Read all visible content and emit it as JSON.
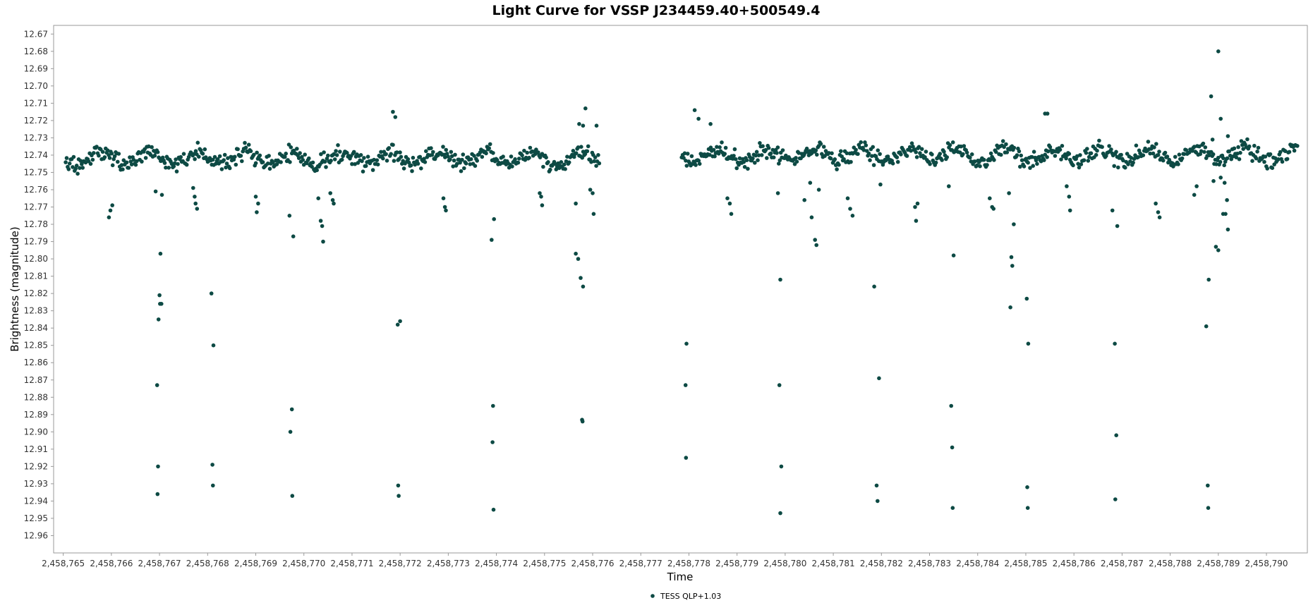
{
  "chart_data": {
    "type": "scatter",
    "title": "Light Curve for VSSP J234459.40+500549.4",
    "xlabel": "Time",
    "ylabel": "Brightness (magnitude)",
    "xlim": [
      2458764.8,
      2458790.85
    ],
    "ylim": [
      12.665,
      12.97
    ],
    "y_inverted": true,
    "grid": false,
    "legend_position": "bottom-center",
    "x_ticks": [
      2458765,
      2458766,
      2458767,
      2458768,
      2458769,
      2458770,
      2458771,
      2458772,
      2458773,
      2458774,
      2458775,
      2458776,
      2458777,
      2458778,
      2458779,
      2458780,
      2458781,
      2458782,
      2458783,
      2458784,
      2458785,
      2458786,
      2458787,
      2458788,
      2458789,
      2458790
    ],
    "x_tick_labels": [
      "2,458,765",
      "2,458,766",
      "2,458,767",
      "2,458,768",
      "2,458,769",
      "2,458,770",
      "2,458,771",
      "2,458,772",
      "2,458,773",
      "2,458,774",
      "2,458,775",
      "2,458,776",
      "2,458,777",
      "2,458,778",
      "2,458,779",
      "2,458,780",
      "2,458,781",
      "2,458,782",
      "2,458,783",
      "2,458,784",
      "2,458,785",
      "2,458,786",
      "2,458,787",
      "2,458,788",
      "2,458,789",
      "2,458,790"
    ],
    "y_ticks": [
      12.67,
      12.68,
      12.69,
      12.7,
      12.71,
      12.72,
      12.73,
      12.74,
      12.75,
      12.76,
      12.77,
      12.78,
      12.79,
      12.8,
      12.81,
      12.82,
      12.83,
      12.84,
      12.85,
      12.86,
      12.87,
      12.88,
      12.89,
      12.9,
      12.91,
      12.92,
      12.93,
      12.94,
      12.95,
      12.96
    ],
    "y_tick_labels": [
      "12.67",
      "12.68",
      "12.69",
      "12.70",
      "12.71",
      "12.72",
      "12.73",
      "12.74",
      "12.75",
      "12.76",
      "12.77",
      "12.78",
      "12.79",
      "12.80",
      "12.81",
      "12.82",
      "12.83",
      "12.84",
      "12.85",
      "12.86",
      "12.87",
      "12.88",
      "12.89",
      "12.90",
      "12.91",
      "12.92",
      "12.93",
      "12.94",
      "12.95",
      "12.96"
    ],
    "series": [
      {
        "name": "TESS QLP+1.03",
        "color": "#0d4a44",
        "baseline": [
          12.742,
          12.74
        ],
        "scatter": 0.007,
        "segments": [
          [
            2458765.05,
            2458776.15
          ],
          [
            2458777.85,
            2458790.65
          ]
        ],
        "points": [
          [
            2458765.95,
            12.776
          ],
          [
            2458765.98,
            12.772
          ],
          [
            2458766.02,
            12.769
          ],
          [
            2458766.92,
            12.761
          ],
          [
            2458767.05,
            12.763
          ],
          [
            2458766.95,
            12.873
          ],
          [
            2458766.98,
            12.835
          ],
          [
            2458767.0,
            12.821
          ],
          [
            2458767.01,
            12.826
          ],
          [
            2458767.02,
            12.797
          ],
          [
            2458767.04,
            12.826
          ],
          [
            2458766.97,
            12.92
          ],
          [
            2458766.96,
            12.936
          ],
          [
            2458767.7,
            12.759
          ],
          [
            2458767.73,
            12.764
          ],
          [
            2458767.75,
            12.768
          ],
          [
            2458767.78,
            12.771
          ],
          [
            2458768.08,
            12.82
          ],
          [
            2458768.12,
            12.85
          ],
          [
            2458768.1,
            12.919
          ],
          [
            2458768.11,
            12.931
          ],
          [
            2458769.0,
            12.764
          ],
          [
            2458769.05,
            12.768
          ],
          [
            2458769.02,
            12.773
          ],
          [
            2458769.7,
            12.775
          ],
          [
            2458769.78,
            12.787
          ],
          [
            2458769.75,
            12.887
          ],
          [
            2458769.72,
            12.9
          ],
          [
            2458769.76,
            12.937
          ],
          [
            2458770.3,
            12.765
          ],
          [
            2458770.35,
            12.778
          ],
          [
            2458770.38,
            12.781
          ],
          [
            2458770.4,
            12.79
          ],
          [
            2458770.55,
            12.762
          ],
          [
            2458770.6,
            12.766
          ],
          [
            2458770.62,
            12.768
          ],
          [
            2458771.85,
            12.715
          ],
          [
            2458771.9,
            12.718
          ],
          [
            2458771.95,
            12.838
          ],
          [
            2458772.0,
            12.836
          ],
          [
            2458771.96,
            12.931
          ],
          [
            2458771.97,
            12.937
          ],
          [
            2458772.9,
            12.765
          ],
          [
            2458772.93,
            12.77
          ],
          [
            2458772.95,
            12.772
          ],
          [
            2458773.9,
            12.789
          ],
          [
            2458773.95,
            12.777
          ],
          [
            2458773.93,
            12.885
          ],
          [
            2458773.92,
            12.906
          ],
          [
            2458773.94,
            12.945
          ],
          [
            2458774.9,
            12.762
          ],
          [
            2458774.93,
            12.764
          ],
          [
            2458774.95,
            12.769
          ],
          [
            2458775.65,
            12.797
          ],
          [
            2458775.7,
            12.8
          ],
          [
            2458775.75,
            12.811
          ],
          [
            2458775.8,
            12.816
          ],
          [
            2458775.78,
            12.893
          ],
          [
            2458775.79,
            12.894
          ],
          [
            2458775.65,
            12.768
          ],
          [
            2458775.72,
            12.722
          ],
          [
            2458775.95,
            12.76
          ],
          [
            2458776.0,
            12.762
          ],
          [
            2458776.02,
            12.774
          ],
          [
            2458776.08,
            12.723
          ],
          [
            2458775.8,
            12.723
          ],
          [
            2458775.85,
            12.713
          ],
          [
            2458777.95,
            12.849
          ],
          [
            2458777.93,
            12.873
          ],
          [
            2458777.94,
            12.915
          ],
          [
            2458778.12,
            12.714
          ],
          [
            2458778.2,
            12.719
          ],
          [
            2458778.45,
            12.722
          ],
          [
            2458778.8,
            12.765
          ],
          [
            2458778.85,
            12.768
          ],
          [
            2458778.88,
            12.774
          ],
          [
            2458779.85,
            12.762
          ],
          [
            2458779.9,
            12.812
          ],
          [
            2458779.88,
            12.873
          ],
          [
            2458779.92,
            12.92
          ],
          [
            2458779.9,
            12.947
          ],
          [
            2458780.4,
            12.766
          ],
          [
            2458780.55,
            12.776
          ],
          [
            2458780.62,
            12.789
          ],
          [
            2458780.65,
            12.792
          ],
          [
            2458780.7,
            12.76
          ],
          [
            2458780.52,
            12.756
          ],
          [
            2458781.3,
            12.765
          ],
          [
            2458781.35,
            12.771
          ],
          [
            2458781.4,
            12.775
          ],
          [
            2458781.85,
            12.816
          ],
          [
            2458781.95,
            12.869
          ],
          [
            2458781.9,
            12.931
          ],
          [
            2458781.92,
            12.94
          ],
          [
            2458781.98,
            12.757
          ],
          [
            2458782.7,
            12.77
          ],
          [
            2458782.75,
            12.768
          ],
          [
            2458782.72,
            12.778
          ],
          [
            2458783.4,
            12.758
          ],
          [
            2458783.5,
            12.798
          ],
          [
            2458783.45,
            12.885
          ],
          [
            2458783.47,
            12.909
          ],
          [
            2458783.48,
            12.944
          ],
          [
            2458784.25,
            12.765
          ],
          [
            2458784.3,
            12.77
          ],
          [
            2458784.33,
            12.771
          ],
          [
            2458784.65,
            12.762
          ],
          [
            2458784.7,
            12.799
          ],
          [
            2458784.72,
            12.804
          ],
          [
            2458784.75,
            12.78
          ],
          [
            2458784.68,
            12.828
          ],
          [
            2458785.02,
            12.823
          ],
          [
            2458785.05,
            12.849
          ],
          [
            2458785.03,
            12.932
          ],
          [
            2458785.04,
            12.944
          ],
          [
            2458785.4,
            12.716
          ],
          [
            2458785.45,
            12.716
          ],
          [
            2458785.85,
            12.758
          ],
          [
            2458785.9,
            12.764
          ],
          [
            2458785.92,
            12.772
          ],
          [
            2458786.8,
            12.772
          ],
          [
            2458786.9,
            12.781
          ],
          [
            2458786.85,
            12.849
          ],
          [
            2458786.88,
            12.902
          ],
          [
            2458786.86,
            12.939
          ],
          [
            2458787.7,
            12.768
          ],
          [
            2458787.75,
            12.773
          ],
          [
            2458787.78,
            12.776
          ],
          [
            2458788.5,
            12.763
          ],
          [
            2458788.55,
            12.758
          ],
          [
            2458788.9,
            12.755
          ],
          [
            2458789.0,
            12.795
          ],
          [
            2458789.05,
            12.753
          ],
          [
            2458789.1,
            12.774
          ],
          [
            2458789.15,
            12.774
          ],
          [
            2458789.18,
            12.766
          ],
          [
            2458789.2,
            12.783
          ],
          [
            2458789.13,
            12.756
          ],
          [
            2458788.95,
            12.793
          ],
          [
            2458788.8,
            12.812
          ],
          [
            2458788.75,
            12.839
          ],
          [
            2458788.78,
            12.931
          ],
          [
            2458788.79,
            12.944
          ],
          [
            2458789.0,
            12.68
          ],
          [
            2458788.85,
            12.706
          ],
          [
            2458789.05,
            12.719
          ],
          [
            2458789.2,
            12.729
          ],
          [
            2458788.88,
            12.731
          ]
        ]
      }
    ]
  }
}
